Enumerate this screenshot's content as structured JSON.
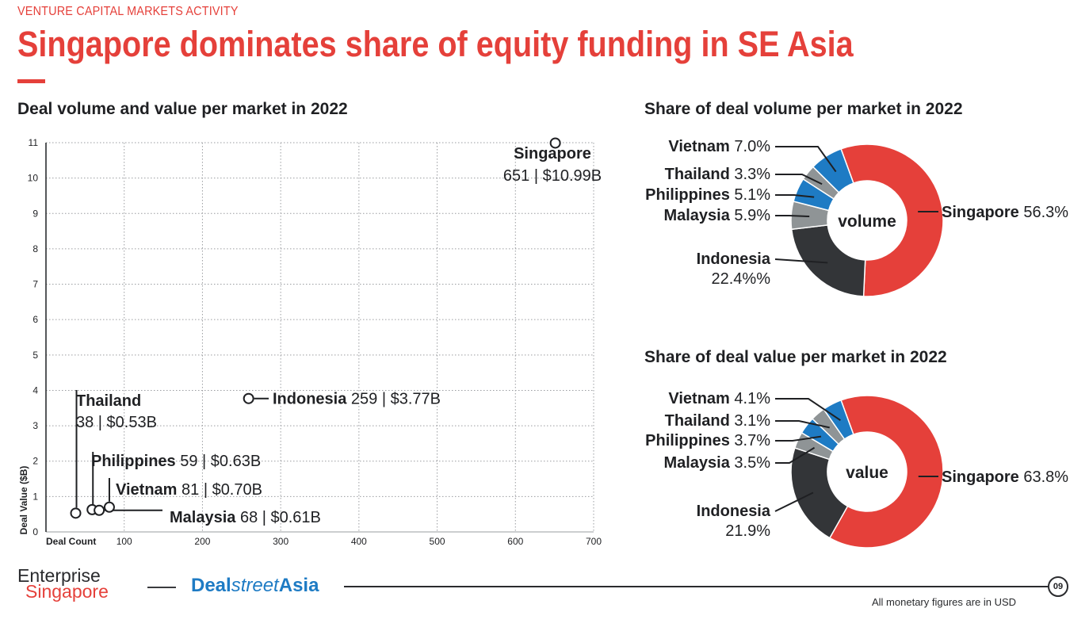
{
  "header": {
    "eyebrow": "VENTURE CAPITAL MARKETS ACTIVITY",
    "title": "Singapore dominates share of equity funding in SE Asia",
    "accent_color": "#e5403a"
  },
  "footer": {
    "logo_line1": "Enterprise",
    "logo_line2": "Singapore",
    "brand_a": "Deal",
    "brand_b": "street",
    "brand_c": "Asia",
    "page_number": "09",
    "note": "All monetary figures are in USD"
  },
  "colors": {
    "singapore": "#e5403a",
    "indonesia": "#333538",
    "malaysia": "#8f9496",
    "philippines": "#1e7bc4",
    "thailand": "#8f9496",
    "vietnam": "#1e7bc4",
    "text": "#1f2023"
  },
  "chart_data": [
    {
      "type": "scatter",
      "title": "Deal volume and value per market in 2022",
      "xlabel": "Deal Count",
      "ylabel": "Deal Value ($B)",
      "xlim": [
        0,
        700
      ],
      "ylim": [
        0,
        11
      ],
      "x_ticks": [
        "100",
        "200",
        "300",
        "400",
        "500",
        "600",
        "700"
      ],
      "y_ticks": [
        "0",
        "1",
        "2",
        "3",
        "4",
        "5",
        "6",
        "7",
        "8",
        "9",
        "10",
        "11"
      ],
      "grid": true,
      "points": [
        {
          "market": "Singapore",
          "x": 651,
          "y": 10.99,
          "count_label": "651",
          "value_label": "$10.99B"
        },
        {
          "market": "Indonesia",
          "x": 259,
          "y": 3.77,
          "count_label": "259",
          "value_label": "$3.77B"
        },
        {
          "market": "Thailand",
          "x": 38,
          "y": 0.53,
          "count_label": "38",
          "value_label": "$0.53B"
        },
        {
          "market": "Philippines",
          "x": 59,
          "y": 0.63,
          "count_label": "59",
          "value_label": "$0.63B"
        },
        {
          "market": "Vietnam",
          "x": 81,
          "y": 0.7,
          "count_label": "81",
          "value_label": "$0.70B"
        },
        {
          "market": "Malaysia",
          "x": 68,
          "y": 0.61,
          "count_label": "68",
          "value_label": "$0.61B"
        }
      ]
    },
    {
      "type": "pie",
      "title": "Share of deal volume per market in 2022",
      "center_label": "volume",
      "slices": [
        {
          "market": "Singapore",
          "value": 56.3,
          "label": "56.3%"
        },
        {
          "market": "Indonesia",
          "value": 22.4,
          "label": "22.4%%"
        },
        {
          "market": "Malaysia",
          "value": 5.9,
          "label": "5.9%"
        },
        {
          "market": "Philippines",
          "value": 5.1,
          "label": "5.1%"
        },
        {
          "market": "Thailand",
          "value": 3.3,
          "label": "3.3%"
        },
        {
          "market": "Vietnam",
          "value": 7.0,
          "label": "7.0%"
        }
      ]
    },
    {
      "type": "pie",
      "title": "Share of deal value per market in 2022",
      "center_label": "value",
      "slices": [
        {
          "market": "Singapore",
          "value": 63.8,
          "label": "63.8%"
        },
        {
          "market": "Indonesia",
          "value": 21.9,
          "label": "21.9%"
        },
        {
          "market": "Malaysia",
          "value": 3.5,
          "label": "3.5%"
        },
        {
          "market": "Philippines",
          "value": 3.7,
          "label": "3.7%"
        },
        {
          "market": "Thailand",
          "value": 3.1,
          "label": "3.1%"
        },
        {
          "market": "Vietnam",
          "value": 4.1,
          "label": "4.1%"
        }
      ]
    }
  ]
}
